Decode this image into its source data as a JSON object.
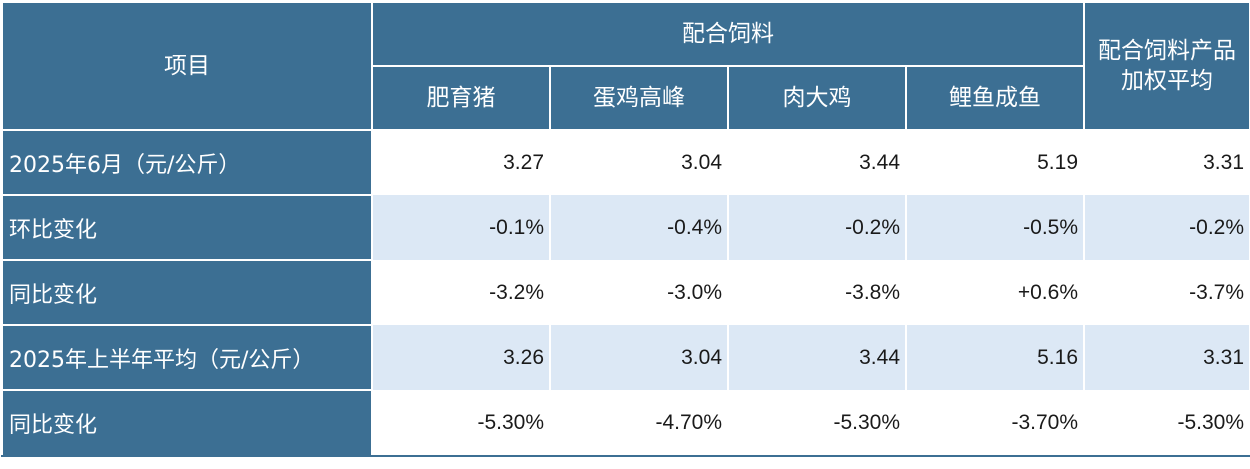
{
  "table": {
    "header": {
      "item_label": "项目",
      "group_label": "配合饲料",
      "weighted_label_line1": "配合饲料产品",
      "weighted_label_line2": "加权平均",
      "sub_columns": [
        "肥育猪",
        "蛋鸡高峰",
        "肉大鸡",
        "鲤鱼成鱼"
      ]
    },
    "rows": [
      {
        "label": "2025年6月（元/公斤）",
        "values": [
          "3.27",
          "3.04",
          "3.44",
          "5.19",
          "3.31"
        ]
      },
      {
        "label": "环比变化",
        "values": [
          "-0.1%",
          "-0.4%",
          "-0.2%",
          "-0.5%",
          "-0.2%"
        ]
      },
      {
        "label": "同比变化",
        "values": [
          "-3.2%",
          "-3.0%",
          "-3.8%",
          "+0.6%",
          "-3.7%"
        ]
      },
      {
        "label": "2025年上半年平均（元/公斤）",
        "values": [
          "3.26",
          "3.04",
          "3.44",
          "5.16",
          "3.31"
        ]
      },
      {
        "label": "同比变化",
        "values": [
          "-5.30%",
          "-4.70%",
          "-5.30%",
          "-3.70%",
          "-5.30%"
        ]
      }
    ],
    "colors": {
      "header_bg": "#3c6f93",
      "header_text": "#ffffff",
      "row_tint": "#dce8f5",
      "row_white": "#ffffff"
    }
  }
}
